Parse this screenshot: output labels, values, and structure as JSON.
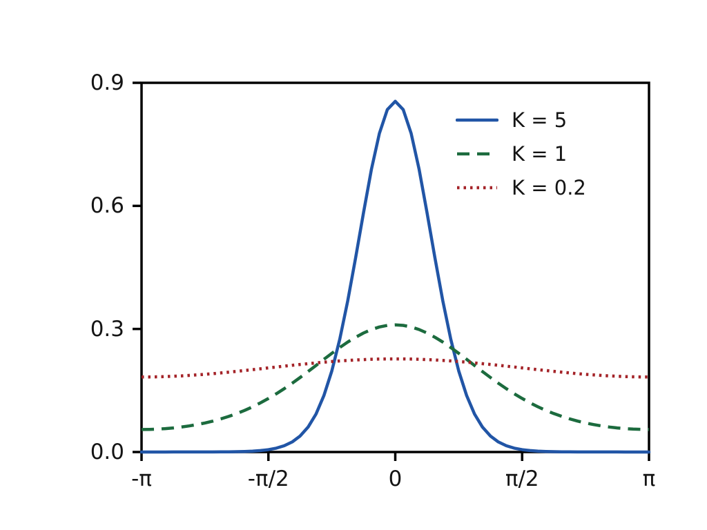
{
  "page": {
    "background": "#ffffff",
    "text_color": "#141414",
    "axis_color": "#000000"
  },
  "chart_data": {
    "type": "line",
    "grid": false,
    "x_axis": {
      "unit": "radians",
      "min_pi": -1,
      "max_pi": 1,
      "tick_positions_pi": [
        -1,
        -0.5,
        0,
        0.5,
        1
      ],
      "tick_labels": [
        "-π",
        "-π/2",
        "0",
        "π/2",
        "π"
      ]
    },
    "y_axis": {
      "min": 0,
      "max": 0.9,
      "tick_values": [
        0,
        0.3,
        0.6,
        0.9
      ],
      "tick_labels": [
        "0.0",
        "0.3",
        "0.6",
        "0.9"
      ]
    },
    "legend": {
      "position": "upper right",
      "entries": [
        "K = 5",
        "K = 1",
        "K = 0.2"
      ]
    },
    "x_sampling": "65 evenly spaced points from -π to π",
    "series": [
      {
        "name": "K = 5",
        "color": "#2155A6",
        "style": "solid",
        "y": [
          0.0,
          0.0,
          0.0,
          0.0,
          0.0001,
          0.0001,
          0.0001,
          0.0001,
          0.0002,
          0.0002,
          0.0004,
          0.0005,
          0.0009,
          0.0013,
          0.0022,
          0.0035,
          0.0058,
          0.0094,
          0.0153,
          0.0246,
          0.039,
          0.0608,
          0.0926,
          0.1374,
          0.1977,
          0.2748,
          0.3681,
          0.4738,
          0.5843,
          0.6894,
          0.7767,
          0.8347,
          0.855,
          0.8347,
          0.7767,
          0.6894,
          0.5843,
          0.4738,
          0.3681,
          0.2748,
          0.1977,
          0.1374,
          0.0926,
          0.0608,
          0.039,
          0.0246,
          0.0153,
          0.0094,
          0.0058,
          0.0035,
          0.0022,
          0.0013,
          0.0009,
          0.0005,
          0.0004,
          0.0002,
          0.0002,
          0.0001,
          0.0001,
          0.0001,
          0.0001,
          0.0,
          0.0,
          0.0,
          0.0
        ]
      },
      {
        "name": "K = 1",
        "color": "#1C6B3E",
        "style": "dashed",
        "y": [
          0.0549,
          0.0552,
          0.0559,
          0.057,
          0.0587,
          0.0609,
          0.0636,
          0.0669,
          0.0708,
          0.0754,
          0.0807,
          0.0868,
          0.0937,
          0.1015,
          0.1102,
          0.1199,
          0.1305,
          0.142,
          0.1545,
          0.1678,
          0.1817,
          0.1962,
          0.211,
          0.2259,
          0.2406,
          0.2547,
          0.2679,
          0.2798,
          0.2902,
          0.2986,
          0.3048,
          0.3087,
          0.3099,
          0.3087,
          0.3048,
          0.2986,
          0.2902,
          0.2798,
          0.2679,
          0.2547,
          0.2406,
          0.2259,
          0.211,
          0.1962,
          0.1817,
          0.1678,
          0.1545,
          0.142,
          0.1305,
          0.1199,
          0.1102,
          0.1015,
          0.0937,
          0.0868,
          0.0807,
          0.0754,
          0.0708,
          0.0669,
          0.0636,
          0.0609,
          0.0587,
          0.057,
          0.0559,
          0.0552,
          0.0549
        ]
      },
      {
        "name": "K = 0.2",
        "color": "#A42328",
        "style": "dotted",
        "y": [
          0.183,
          0.1831,
          0.1834,
          0.1839,
          0.1847,
          0.1856,
          0.1867,
          0.188,
          0.1894,
          0.191,
          0.1928,
          0.1946,
          0.1966,
          0.1986,
          0.2007,
          0.2028,
          0.205,
          0.2072,
          0.2093,
          0.2114,
          0.2134,
          0.2154,
          0.2172,
          0.219,
          0.2206,
          0.222,
          0.2233,
          0.2244,
          0.2253,
          0.2261,
          0.2266,
          0.2269,
          0.227,
          0.2269,
          0.2266,
          0.2261,
          0.2253,
          0.2244,
          0.2233,
          0.222,
          0.2206,
          0.219,
          0.2172,
          0.2154,
          0.2134,
          0.2114,
          0.2093,
          0.2072,
          0.205,
          0.2028,
          0.2007,
          0.1986,
          0.1966,
          0.1946,
          0.1928,
          0.191,
          0.1894,
          0.188,
          0.1867,
          0.1856,
          0.1847,
          0.1839,
          0.1834,
          0.1831,
          0.183
        ]
      }
    ]
  }
}
